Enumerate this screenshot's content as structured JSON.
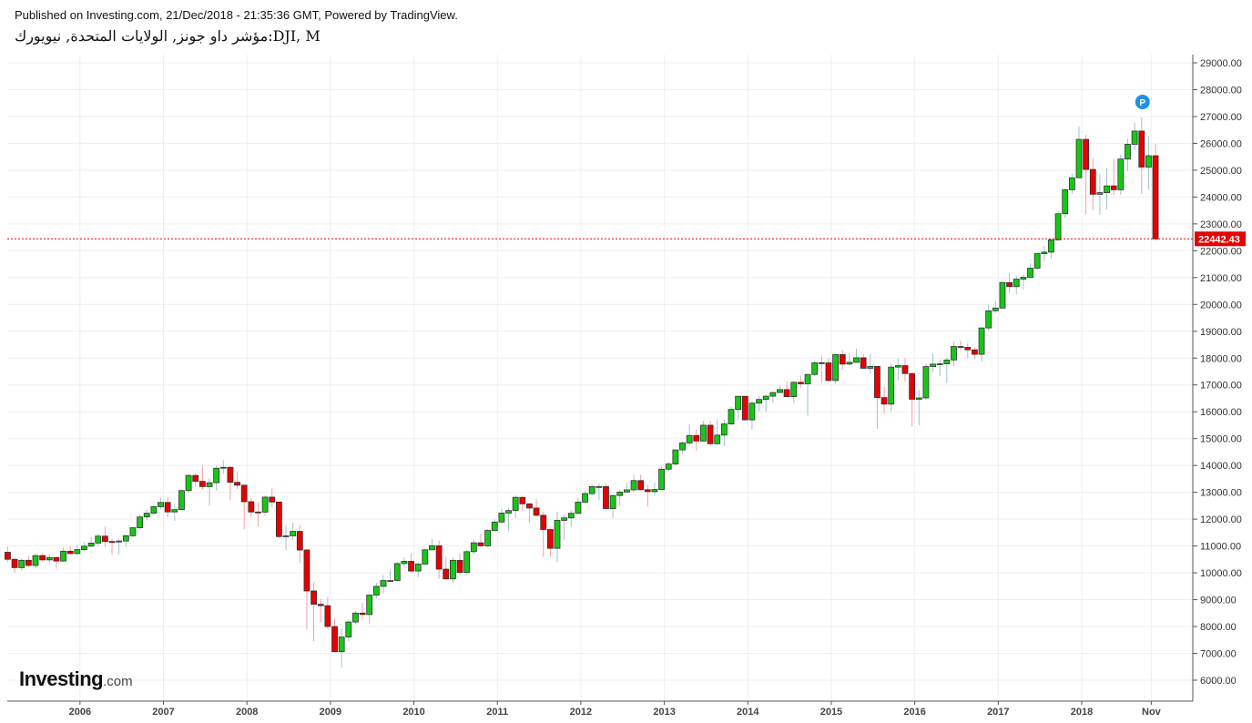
{
  "header": {
    "published": "Published on Investing.com, 21/Dec/2018 - 21:35:36 GMT, Powered by TradingView.",
    "symbol": "مؤشر داو جونز, الولايات المتحدة, نيويورك:DJI, M"
  },
  "logo": {
    "text": "Investing",
    "suffix": ".com"
  },
  "chart_data": {
    "type": "candlestick",
    "title": "Dow Jones Industrial Average, Monthly",
    "start": "2005-03",
    "interval": "month",
    "ylim": [
      5500,
      29500
    ],
    "y_ticks": [
      6000,
      7000,
      8000,
      9000,
      10000,
      11000,
      12000,
      13000,
      14000,
      15000,
      16000,
      17000,
      18000,
      19000,
      20000,
      21000,
      22000,
      23000,
      24000,
      25000,
      26000,
      27000,
      28000,
      29000
    ],
    "x_labels": [
      {
        "label": "2006",
        "index": 10
      },
      {
        "label": "2007",
        "index": 22
      },
      {
        "label": "2008",
        "index": 34
      },
      {
        "label": "2009",
        "index": 46
      },
      {
        "label": "2010",
        "index": 58
      },
      {
        "label": "2011",
        "index": 70
      },
      {
        "label": "2012",
        "index": 82
      },
      {
        "label": "2013",
        "index": 94
      },
      {
        "label": "2014",
        "index": 106
      },
      {
        "label": "2015",
        "index": 118
      },
      {
        "label": "2016",
        "index": 130
      },
      {
        "label": "2017",
        "index": 142
      },
      {
        "label": "2018",
        "index": 154
      },
      {
        "label": "Nov",
        "index": 164
      }
    ],
    "last_price": "22442.43",
    "last_value": 22442.43,
    "marker": {
      "label": "P",
      "index": 163
    },
    "colors": {
      "up": "#16c716",
      "down": "#e60000",
      "up_wick": "#9ec3cc",
      "down_wick": "#f2a0a8",
      "last": "#e60000",
      "marker": "#1e90e8"
    },
    "ohlc": [
      [
        10766,
        10985,
        10404,
        10504
      ],
      [
        10504,
        10570,
        10013,
        10193
      ],
      [
        10193,
        10542,
        10094,
        10467
      ],
      [
        10467,
        10650,
        10235,
        10275
      ],
      [
        10275,
        10720,
        10178,
        10641
      ],
      [
        10641,
        10720,
        10397,
        10482
      ],
      [
        10482,
        10700,
        10360,
        10569
      ],
      [
        10569,
        10590,
        10156,
        10440
      ],
      [
        10440,
        10940,
        10406,
        10806
      ],
      [
        10806,
        10985,
        10660,
        10718
      ],
      [
        10718,
        11050,
        10660,
        10865
      ],
      [
        10865,
        11140,
        10800,
        10993
      ],
      [
        10993,
        11335,
        10950,
        11109
      ],
      [
        11109,
        11450,
        11000,
        11367
      ],
      [
        11367,
        11710,
        10960,
        11168
      ],
      [
        11168,
        11260,
        10700,
        11150
      ],
      [
        11150,
        11250,
        10680,
        11186
      ],
      [
        11186,
        11420,
        10970,
        11381
      ],
      [
        11381,
        11720,
        11330,
        11679
      ],
      [
        11679,
        12160,
        11620,
        12081
      ],
      [
        12081,
        12360,
        11950,
        12221
      ],
      [
        12221,
        12530,
        12150,
        12463
      ],
      [
        12463,
        12790,
        12370,
        12622
      ],
      [
        12622,
        12800,
        12070,
        12269
      ],
      [
        12269,
        12530,
        11940,
        12354
      ],
      [
        12354,
        13120,
        12350,
        13063
      ],
      [
        13063,
        13690,
        12980,
        13628
      ],
      [
        13628,
        13720,
        13200,
        13409
      ],
      [
        13409,
        14020,
        13100,
        13212
      ],
      [
        13212,
        13500,
        12520,
        13358
      ],
      [
        13358,
        14000,
        13060,
        13896
      ],
      [
        13896,
        14200,
        13700,
        13930
      ],
      [
        13930,
        13980,
        12720,
        13372
      ],
      [
        13372,
        13780,
        13110,
        13265
      ],
      [
        13265,
        13280,
        11630,
        12650
      ],
      [
        12650,
        12770,
        12060,
        12266
      ],
      [
        12266,
        12620,
        11730,
        12263
      ],
      [
        12263,
        12880,
        12140,
        12820
      ],
      [
        12820,
        13140,
        12440,
        12638
      ],
      [
        12638,
        12650,
        11290,
        11350
      ],
      [
        11350,
        11770,
        10830,
        11378
      ],
      [
        11378,
        11870,
        11220,
        11544
      ],
      [
        11544,
        11790,
        10360,
        10851
      ],
      [
        10851,
        10880,
        7880,
        9325
      ],
      [
        9325,
        9650,
        7450,
        8829
      ],
      [
        8829,
        9030,
        8150,
        8776
      ],
      [
        8776,
        9090,
        7910,
        8001
      ],
      [
        8001,
        8300,
        7050,
        7063
      ],
      [
        7063,
        7930,
        6470,
        7609
      ],
      [
        7609,
        8250,
        7450,
        8168
      ],
      [
        8168,
        8580,
        8080,
        8500
      ],
      [
        8500,
        8880,
        8220,
        8447
      ],
      [
        8447,
        9200,
        8090,
        9172
      ],
      [
        9172,
        9630,
        9050,
        9496
      ],
      [
        9496,
        9920,
        9250,
        9712
      ],
      [
        9712,
        10120,
        9670,
        9713
      ],
      [
        9713,
        10410,
        9680,
        10345
      ],
      [
        10345,
        10580,
        10230,
        10428
      ],
      [
        10428,
        10730,
        10020,
        10067
      ],
      [
        10067,
        10400,
        9840,
        10325
      ],
      [
        10325,
        10900,
        10320,
        10857
      ],
      [
        10857,
        11260,
        10860,
        11009
      ],
      [
        11009,
        11210,
        9770,
        10137
      ],
      [
        10137,
        10600,
        9740,
        9774
      ],
      [
        9774,
        10580,
        9610,
        10466
      ],
      [
        10466,
        10720,
        9920,
        10015
      ],
      [
        10015,
        10860,
        9940,
        10788
      ],
      [
        10788,
        11240,
        10700,
        11118
      ],
      [
        11118,
        11450,
        10930,
        11006
      ],
      [
        11006,
        11630,
        10960,
        11578
      ],
      [
        11578,
        11990,
        11530,
        11892
      ],
      [
        11892,
        12390,
        11830,
        12226
      ],
      [
        12226,
        12420,
        11550,
        12320
      ],
      [
        12320,
        12880,
        12040,
        12811
      ],
      [
        12811,
        12880,
        12300,
        12570
      ],
      [
        12570,
        12600,
        11860,
        12414
      ],
      [
        12414,
        12750,
        12090,
        12143
      ],
      [
        12143,
        12280,
        10600,
        11614
      ],
      [
        11614,
        11720,
        10600,
        10913
      ],
      [
        10913,
        12280,
        10400,
        11955
      ],
      [
        11955,
        12190,
        11230,
        12046
      ],
      [
        12046,
        12330,
        11730,
        12218
      ],
      [
        12218,
        12800,
        12210,
        12633
      ],
      [
        12633,
        13050,
        12620,
        12952
      ],
      [
        12952,
        13290,
        12880,
        13212
      ],
      [
        13212,
        13340,
        12710,
        13214
      ],
      [
        13214,
        13340,
        12390,
        12393
      ],
      [
        12393,
        12900,
        12040,
        12880
      ],
      [
        12880,
        13100,
        12490,
        13009
      ],
      [
        13009,
        13330,
        12990,
        13091
      ],
      [
        13091,
        13650,
        13010,
        13437
      ],
      [
        13437,
        13660,
        13050,
        13096
      ],
      [
        13096,
        13290,
        12470,
        13026
      ],
      [
        13026,
        13350,
        12880,
        13104
      ],
      [
        13104,
        13970,
        13100,
        13861
      ],
      [
        13861,
        14150,
        13780,
        14054
      ],
      [
        14054,
        14590,
        13990,
        14579
      ],
      [
        14579,
        14890,
        14430,
        14840
      ],
      [
        14840,
        15540,
        14740,
        15116
      ],
      [
        15116,
        15340,
        14550,
        14910
      ],
      [
        14910,
        15660,
        14880,
        15500
      ],
      [
        15500,
        15660,
        14760,
        14810
      ],
      [
        14810,
        15710,
        14770,
        15130
      ],
      [
        15130,
        15720,
        14720,
        15546
      ],
      [
        15546,
        16180,
        15510,
        16086
      ],
      [
        16086,
        16590,
        15700,
        16577
      ],
      [
        16577,
        16590,
        15700,
        15699
      ],
      [
        15699,
        16400,
        15340,
        16322
      ],
      [
        16322,
        16590,
        16020,
        16458
      ],
      [
        16458,
        16630,
        16000,
        16581
      ],
      [
        16581,
        16740,
        16330,
        16717
      ],
      [
        16717,
        16980,
        16700,
        16827
      ],
      [
        16827,
        17150,
        16560,
        16563
      ],
      [
        16563,
        17140,
        16330,
        17098
      ],
      [
        17098,
        17350,
        16900,
        17043
      ],
      [
        17043,
        17400,
        15860,
        17391
      ],
      [
        17391,
        17900,
        17320,
        17828
      ],
      [
        17828,
        18100,
        17070,
        17823
      ],
      [
        17823,
        18000,
        17140,
        17165
      ],
      [
        17165,
        18160,
        17040,
        18133
      ],
      [
        18133,
        18290,
        17580,
        17776
      ],
      [
        17776,
        18180,
        17730,
        17841
      ],
      [
        17841,
        18350,
        17860,
        18011
      ],
      [
        18011,
        18150,
        17600,
        17620
      ],
      [
        17620,
        18140,
        17440,
        17690
      ],
      [
        17690,
        17700,
        15370,
        16528
      ],
      [
        16528,
        16930,
        15940,
        16285
      ],
      [
        16285,
        17800,
        16010,
        17664
      ],
      [
        17664,
        17980,
        17190,
        17720
      ],
      [
        17720,
        17990,
        17140,
        17425
      ],
      [
        17425,
        17430,
        15450,
        16466
      ],
      [
        16466,
        16800,
        15500,
        16517
      ],
      [
        16517,
        17790,
        16450,
        17685
      ],
      [
        17685,
        18170,
        17480,
        17774
      ],
      [
        17774,
        17940,
        17330,
        17787
      ],
      [
        17787,
        18020,
        17060,
        17930
      ],
      [
        17930,
        18620,
        17710,
        18432
      ],
      [
        18432,
        18670,
        18290,
        18401
      ],
      [
        18401,
        18540,
        17990,
        18308
      ],
      [
        18308,
        18400,
        17960,
        18142
      ],
      [
        18142,
        19150,
        17880,
        19124
      ],
      [
        19124,
        19990,
        19000,
        19763
      ],
      [
        19763,
        20130,
        19680,
        19864
      ],
      [
        19864,
        20890,
        19830,
        20812
      ],
      [
        20812,
        21170,
        20410,
        20663
      ],
      [
        20663,
        21070,
        20380,
        20941
      ],
      [
        20941,
        21110,
        20550,
        21009
      ],
      [
        21009,
        21540,
        20990,
        21350
      ],
      [
        21350,
        21930,
        21280,
        21891
      ],
      [
        21891,
        22180,
        21600,
        21948
      ],
      [
        21948,
        22420,
        21710,
        22405
      ],
      [
        22405,
        23490,
        22390,
        23377
      ],
      [
        23377,
        24330,
        23240,
        24272
      ],
      [
        24272,
        24880,
        24130,
        24719
      ],
      [
        24719,
        26620,
        24720,
        26149
      ],
      [
        26149,
        26310,
        23360,
        25029
      ],
      [
        25029,
        25450,
        23510,
        24103
      ],
      [
        24103,
        24860,
        23340,
        24163
      ],
      [
        24163,
        25090,
        23530,
        24416
      ],
      [
        24416,
        25400,
        24080,
        24271
      ],
      [
        24271,
        25590,
        24080,
        25415
      ],
      [
        25415,
        26170,
        24970,
        25965
      ],
      [
        25965,
        26770,
        25740,
        26458
      ],
      [
        26458,
        26950,
        24120,
        25116
      ],
      [
        25116,
        26280,
        24270,
        25538
      ],
      [
        25538,
        25980,
        22440,
        22442
      ]
    ]
  }
}
